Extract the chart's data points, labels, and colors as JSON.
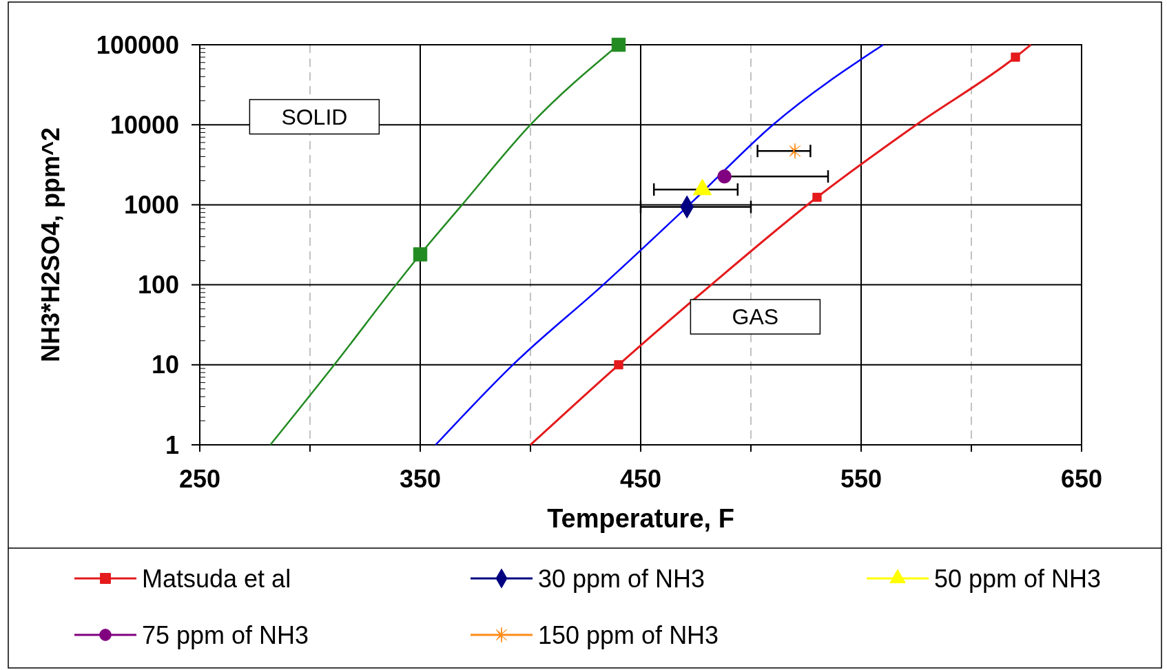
{
  "chart_data": {
    "type": "line",
    "xlabel": "Temperature, F",
    "ylabel": "NH3*H2SO4, ppm^2",
    "log": "y",
    "grid": true,
    "legend": "bottom",
    "xlim": [
      250,
      650
    ],
    "ylim": [
      1,
      100000
    ],
    "xticks": [
      250,
      {
        "value": 300,
        "label": null
      },
      350,
      {
        "value": 400,
        "label": null
      },
      450,
      {
        "value": 500,
        "label": null
      },
      550,
      {
        "value": 600,
        "label": null
      },
      650
    ],
    "yticks": [
      1,
      10,
      100,
      1000,
      10000,
      100000
    ],
    "annotations": [
      "SOLID",
      "GAS"
    ],
    "series": [
      {
        "name": "Matsuda et al",
        "color": "#e41a1c",
        "marker": "none",
        "x": [
          400,
          440,
          482,
          530,
          575,
          620,
          627
        ],
        "values": [
          1,
          10,
          100,
          1240,
          10000,
          70000,
          100000
        ]
      },
      {
        "color": "#e41a1c",
        "type": "scatter",
        "marker": "square",
        "x": [
          440,
          530,
          620
        ],
        "values": [
          10,
          1240,
          70000
        ]
      },
      {
        "color": "#228b22",
        "marker": "none",
        "x": [
          282,
          311,
          339,
          350,
          369,
          400,
          440
        ],
        "values": [
          1,
          10,
          100,
          240,
          1000,
          10000,
          100000
        ]
      },
      {
        "color": "#228b22",
        "type": "scatter",
        "marker": "square",
        "x": [
          350,
          440
        ],
        "values": [
          240,
          100000
        ]
      },
      {
        "color": "#0000ff",
        "marker": "none",
        "x": [
          357,
          392,
          433,
          472,
          510,
          560
        ],
        "values": [
          1,
          10,
          100,
          1000,
          10000,
          100000
        ]
      },
      {
        "name": "30 ppm of NH3",
        "color": "#000080",
        "type": "scatter",
        "marker": "diamond",
        "x": [
          471
        ],
        "values": [
          940
        ],
        "xerrors": [
          [
            450,
            500
          ]
        ]
      },
      {
        "name": "50 ppm of NH3",
        "color": "#ffff00",
        "type": "scatter",
        "marker": "triangle",
        "x": [
          478
        ],
        "values": [
          1550
        ],
        "xerrors": [
          [
            456,
            494
          ]
        ]
      },
      {
        "name": "75 ppm of NH3",
        "color": "#800080",
        "type": "scatter",
        "marker": "circle",
        "x": [
          488
        ],
        "values": [
          2260
        ],
        "xerrors": [
          [
            488,
            535
          ]
        ]
      },
      {
        "name": "150 ppm of NH3",
        "color": "#ff8c1a",
        "type": "scatter",
        "marker": "cross",
        "x": [
          520
        ],
        "values": [
          4700
        ],
        "xerrors": [
          [
            503,
            527
          ]
        ]
      }
    ]
  }
}
